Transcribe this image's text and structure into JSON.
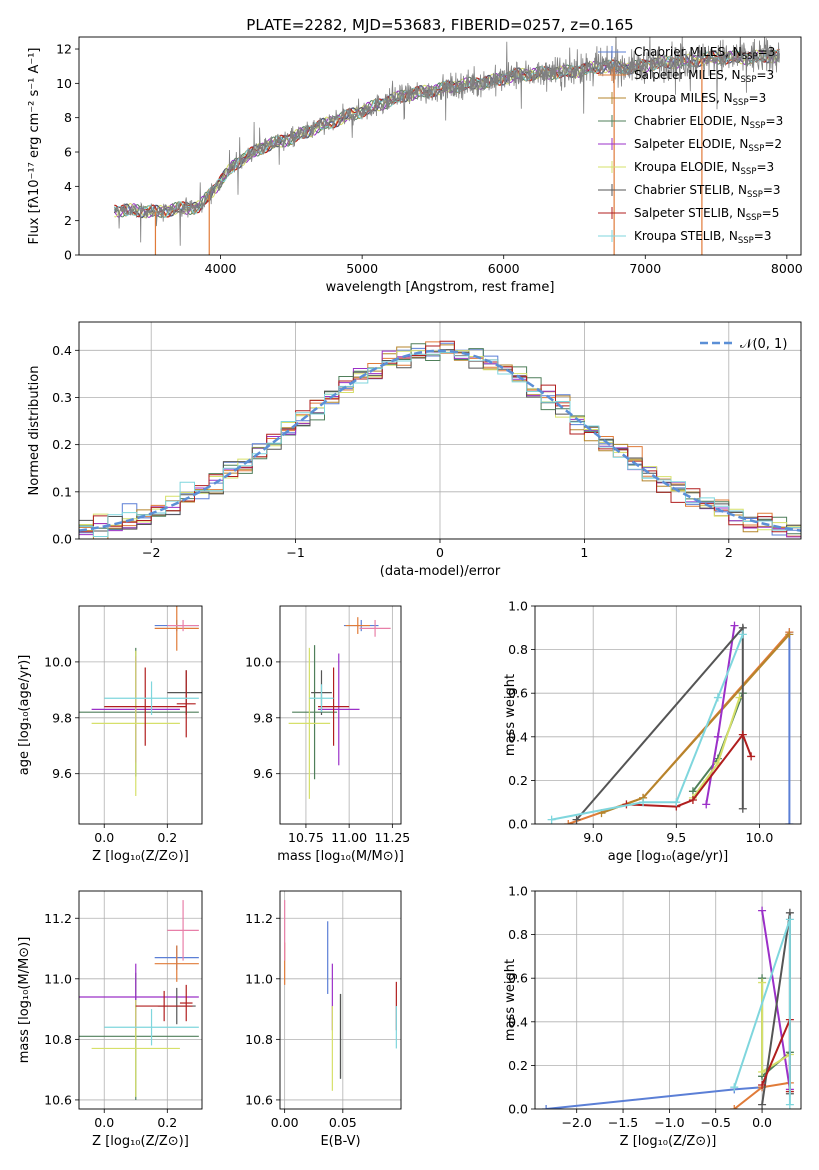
{
  "colors": {
    "chabrier_miles": "#5b7fd6",
    "salpeter_miles": "#e07b39",
    "kroupa_miles": "#b5852c",
    "chabrier_elodie": "#4f7f5a",
    "salpeter_elodie": "#9b30c8",
    "kroupa_elodie": "#d6e06a",
    "chabrier_stelib": "#555555",
    "salpeter_stelib": "#b01e1e",
    "kroupa_stelib": "#7fd6dd",
    "data": "#808080",
    "normal": "#5b8fd6",
    "pink": "#e87fa8"
  },
  "chart_data": [
    {
      "id": "spectrum",
      "type": "line",
      "title": "PLATE=2282, MJD=53683, FIBERID=0257, z=0.165",
      "xlabel": "wavelength [Angstrom, rest frame]",
      "ylabel": "Flux [fλ10⁻¹⁷ erg cm⁻² s⁻¹ A⁻¹]",
      "xlim": [
        3000,
        8100
      ],
      "ylim": [
        0,
        12.7
      ],
      "xticks": [
        "4000",
        "5000",
        "6000",
        "7000",
        "8000"
      ],
      "yticks": [
        "0",
        "2",
        "4",
        "6",
        "8",
        "10",
        "12"
      ],
      "legend_position": "top-right",
      "legend": [
        {
          "base": "Chabrier MILES, N",
          "sub": "SSP",
          "tail": "=3"
        },
        {
          "base": "Salpeter MILES, N",
          "sub": "SSP",
          "tail": "=3"
        },
        {
          "base": "Kroupa MILES, N",
          "sub": "SSP",
          "tail": "=3"
        },
        {
          "base": "Chabrier ELODIE, N",
          "sub": "SSP",
          "tail": "=3"
        },
        {
          "base": "Salpeter ELODIE, N",
          "sub": "SSP",
          "tail": "=2"
        },
        {
          "base": "Kroupa ELODIE, N",
          "sub": "SSP",
          "tail": "=3"
        },
        {
          "base": "Chabrier STELIB, N",
          "sub": "SSP",
          "tail": "=3"
        },
        {
          "base": "Salpeter STELIB, N",
          "sub": "SSP",
          "tail": "=5"
        },
        {
          "base": "Kroupa STELIB, N",
          "sub": "SSP",
          "tail": "=3"
        }
      ],
      "continuum": [
        [
          3250,
          2.6
        ],
        [
          3400,
          2.6
        ],
        [
          3550,
          2.5
        ],
        [
          3700,
          2.7
        ],
        [
          3850,
          2.8
        ],
        [
          3950,
          3.8
        ],
        [
          4100,
          5.3
        ],
        [
          4300,
          6.3
        ],
        [
          4500,
          6.8
        ],
        [
          4700,
          7.5
        ],
        [
          4900,
          8.1
        ],
        [
          5100,
          8.7
        ],
        [
          5300,
          9.3
        ],
        [
          5500,
          9.6
        ],
        [
          5700,
          9.9
        ],
        [
          5900,
          10.1
        ],
        [
          6100,
          10.5
        ],
        [
          6300,
          10.6
        ],
        [
          6500,
          10.7
        ],
        [
          6700,
          11.0
        ],
        [
          6900,
          10.9
        ],
        [
          7100,
          11.2
        ],
        [
          7300,
          11.3
        ],
        [
          7500,
          11.5
        ],
        [
          7700,
          11.5
        ],
        [
          7900,
          11.6
        ]
      ]
    },
    {
      "id": "residuals",
      "type": "line",
      "xlabel": "(data-model)/error",
      "ylabel": "Normed distribution",
      "xlim": [
        -2.5,
        2.5
      ],
      "ylim": [
        0,
        0.46
      ],
      "xticks": [
        "−2",
        "−1",
        "0",
        "1",
        "2"
      ],
      "yticks": [
        "0.0",
        "0.1",
        "0.2",
        "0.3",
        "0.4"
      ],
      "legend": "𝒩(0, 1)",
      "legend_position": "top-right",
      "bin_width": 0.1
    },
    {
      "id": "z_age",
      "type": "scatter",
      "xlabel": "Z [log₁₀(Z/Z⊙)]",
      "ylabel": "age  [log₁₀(age/yr)]",
      "xlim": [
        -0.08,
        0.31
      ],
      "ylim": [
        9.42,
        10.2
      ],
      "xticks": [
        "0.0",
        "0.2"
      ],
      "yticks": [
        "9.6",
        "9.8",
        "10.0"
      ],
      "crosses": [
        {
          "s": "chabrier_miles",
          "x": 0.23,
          "xe": 0.07,
          "y": 10.13,
          "ye": 0.02
        },
        {
          "s": "salpeter_miles",
          "x": 0.23,
          "xe": 0.07,
          "y": 10.12,
          "ye": 0.08
        },
        {
          "s": "pink",
          "x": 0.25,
          "xe": 0.05,
          "y": 10.13,
          "ye": 0.02
        },
        {
          "s": "chabrier_elodie",
          "x": 0.1,
          "xe": 0.2,
          "y": 9.82,
          "ye": 0.23
        },
        {
          "s": "salpeter_elodie",
          "x": 0.1,
          "xe": 0.14,
          "y": 9.83,
          "ye": 0.19
        },
        {
          "s": "kroupa_elodie",
          "x": 0.1,
          "xe": 0.14,
          "y": 9.78,
          "ye": 0.26
        },
        {
          "s": "chabrier_stelib",
          "x": 0.26,
          "xe": 0.06,
          "y": 9.89,
          "ye": 0.08
        },
        {
          "s": "salpeter_stelib",
          "x": 0.13,
          "xe": 0.13,
          "y": 9.84,
          "ye": 0.14
        },
        {
          "s": "salpeter_stelib",
          "x": 0.26,
          "xe": 0.03,
          "y": 9.85,
          "ye": 0.12
        },
        {
          "s": "kroupa_stelib",
          "x": 0.15,
          "xe": 0.15,
          "y": 9.87,
          "ye": 0.06
        }
      ]
    },
    {
      "id": "mass_age",
      "type": "scatter",
      "xlabel": "mass [log₁₀(M/M⊙)]",
      "ylabel": "",
      "xlim": [
        10.6,
        11.3
      ],
      "ylim": [
        9.42,
        10.2
      ],
      "xticks": [
        "10.75",
        "11.00",
        "11.25"
      ],
      "yticks": [
        "9.6",
        "9.8",
        "10.0"
      ],
      "crosses": [
        {
          "s": "chabrier_miles",
          "x": 11.07,
          "xe": 0.1,
          "y": 10.13,
          "ye": 0.02
        },
        {
          "s": "salpeter_miles",
          "x": 11.05,
          "xe": 0.07,
          "y": 10.13,
          "ye": 0.03
        },
        {
          "s": "pink",
          "x": 11.15,
          "xe": 0.09,
          "y": 10.12,
          "ye": 0.03
        },
        {
          "s": "chabrier_elodie",
          "x": 10.8,
          "xe": 0.13,
          "y": 9.82,
          "ye": 0.24
        },
        {
          "s": "salpeter_elodie",
          "x": 10.94,
          "xe": 0.12,
          "y": 9.83,
          "ye": 0.2
        },
        {
          "s": "kroupa_elodie",
          "x": 10.77,
          "xe": 0.12,
          "y": 9.78,
          "ye": 0.27
        },
        {
          "s": "chabrier_stelib",
          "x": 10.84,
          "xe": 0.06,
          "y": 9.89,
          "ye": 0.08
        },
        {
          "s": "salpeter_stelib",
          "x": 10.91,
          "xe": 0.09,
          "y": 9.84,
          "ye": 0.14
        },
        {
          "s": "kroupa_stelib",
          "x": 10.84,
          "xe": 0.07,
          "y": 9.87,
          "ye": 0.05
        }
      ]
    },
    {
      "id": "age_weight",
      "type": "line",
      "xlabel": "age  [log₁₀(age/yr)]",
      "ylabel": "mass weight",
      "xlim": [
        8.65,
        10.25
      ],
      "ylim": [
        0,
        1
      ],
      "xticks": [
        "9.0",
        "9.5",
        "10.0"
      ],
      "yticks": [
        "0.0",
        "0.2",
        "0.4",
        "0.6",
        "0.8",
        "1.0"
      ],
      "series": [
        {
          "s": "chabrier_miles",
          "points": [
            [
              10.18,
              0.0
            ],
            [
              10.18,
              0.88
            ]
          ]
        },
        {
          "s": "salpeter_miles",
          "points": [
            [
              8.85,
              0.0
            ],
            [
              9.3,
              0.12
            ],
            [
              10.18,
              0.88
            ]
          ]
        },
        {
          "s": "kroupa_miles",
          "points": [
            [
              9.05,
              0.05
            ],
            [
              9.3,
              0.12
            ],
            [
              10.18,
              0.87
            ]
          ]
        },
        {
          "s": "chabrier_elodie",
          "points": [
            [
              9.6,
              0.15
            ],
            [
              9.75,
              0.3
            ],
            [
              9.9,
              0.6
            ]
          ]
        },
        {
          "s": "salpeter_elodie",
          "points": [
            [
              9.68,
              0.09
            ],
            [
              9.75,
              0.4
            ],
            [
              9.85,
              0.91
            ]
          ]
        },
        {
          "s": "kroupa_elodie",
          "points": [
            [
              9.6,
              0.12
            ],
            [
              9.75,
              0.28
            ],
            [
              9.88,
              0.58
            ]
          ]
        },
        {
          "s": "chabrier_stelib",
          "points": [
            [
              8.9,
              0.02
            ],
            [
              9.9,
              0.9
            ],
            [
              9.9,
              0.07
            ]
          ]
        },
        {
          "s": "salpeter_stelib",
          "points": [
            [
              9.2,
              0.09
            ],
            [
              9.5,
              0.08
            ],
            [
              9.6,
              0.11
            ],
            [
              9.9,
              0.41
            ],
            [
              9.95,
              0.31
            ]
          ]
        },
        {
          "s": "kroupa_stelib",
          "points": [
            [
              8.75,
              0.02
            ],
            [
              9.3,
              0.1
            ],
            [
              9.5,
              0.1
            ],
            [
              9.75,
              0.58
            ],
            [
              9.9,
              0.87
            ]
          ]
        }
      ]
    },
    {
      "id": "z_mass",
      "type": "scatter",
      "xlabel": "Z [log₁₀(Z/Z⊙)]",
      "ylabel": "mass [log₁₀(M/M⊙)]",
      "xlim": [
        -0.08,
        0.31
      ],
      "ylim": [
        10.57,
        11.29
      ],
      "xticks": [
        "0.0",
        "0.2"
      ],
      "yticks": [
        "10.6",
        "10.8",
        "11.0",
        "11.2"
      ],
      "crosses": [
        {
          "s": "chabrier_miles",
          "x": 0.23,
          "xe": 0.07,
          "y": 11.07,
          "ye": 0.04
        },
        {
          "s": "salpeter_miles",
          "x": 0.23,
          "xe": 0.07,
          "y": 11.05,
          "ye": 0.06
        },
        {
          "s": "pink",
          "x": 0.25,
          "xe": 0.05,
          "y": 11.16,
          "ye": 0.1
        },
        {
          "s": "chabrier_elodie",
          "x": 0.1,
          "xe": 0.2,
          "y": 10.81,
          "ye": 0.21
        },
        {
          "s": "salpeter_elodie",
          "x": 0.1,
          "xe": 0.2,
          "y": 10.94,
          "ye": 0.11
        },
        {
          "s": "kroupa_elodie",
          "x": 0.1,
          "xe": 0.14,
          "y": 10.77,
          "ye": 0.16
        },
        {
          "s": "chabrier_stelib",
          "x": 0.23,
          "xe": 0.06,
          "y": 10.91,
          "ye": 0.06
        },
        {
          "s": "salpeter_stelib",
          "x": 0.19,
          "xe": 0.09,
          "y": 10.91,
          "ye": 0.05
        },
        {
          "s": "salpeter_stelib",
          "x": 0.26,
          "xe": 0.02,
          "y": 10.92,
          "ye": 0.06
        },
        {
          "s": "kroupa_stelib",
          "x": 0.15,
          "xe": 0.15,
          "y": 10.84,
          "ye": 0.06
        }
      ]
    },
    {
      "id": "ebv_mass",
      "type": "scatter",
      "xlabel": "E(B-V)",
      "ylabel": "",
      "xlim": [
        -0.004,
        0.1
      ],
      "ylim": [
        10.57,
        11.29
      ],
      "xticks": [
        "0.00",
        "0.05"
      ],
      "yticks": [
        "10.6",
        "10.8",
        "11.0",
        "11.2"
      ],
      "crosses": [
        {
          "s": "chabrier_miles",
          "x": 0.037,
          "y": 11.07,
          "ye": 0.12
        },
        {
          "s": "salpeter_miles",
          "x": 0.0,
          "y": 11.05,
          "ye": 0.07
        },
        {
          "s": "pink",
          "x": 0.0,
          "y": 11.16,
          "ye": 0.1
        },
        {
          "s": "chabrier_elodie",
          "x": 0.048,
          "y": 10.81,
          "ye": 0.14
        },
        {
          "s": "salpeter_elodie",
          "x": 0.041,
          "y": 10.94,
          "ye": 0.11
        },
        {
          "s": "kroupa_elodie",
          "x": 0.041,
          "y": 10.77,
          "ye": 0.14
        },
        {
          "s": "chabrier_stelib",
          "x": 0.048,
          "y": 10.81,
          "ye": 0.14
        },
        {
          "s": "salpeter_stelib",
          "x": 0.096,
          "y": 10.91,
          "ye": 0.08
        },
        {
          "s": "kroupa_stelib",
          "x": 0.096,
          "y": 10.84,
          "ye": 0.07
        }
      ]
    },
    {
      "id": "z_weight",
      "type": "line",
      "xlabel": "Z [log₁₀(Z/Z⊙)]",
      "ylabel": "mass weight",
      "xlim": [
        -2.45,
        0.42
      ],
      "ylim": [
        0,
        1
      ],
      "xticks": [
        "−2.0",
        "−1.5",
        "−1.0",
        "−0.5",
        "0.0"
      ],
      "yticks": [
        "0.0",
        "0.2",
        "0.4",
        "0.6",
        "0.8",
        "1.0"
      ],
      "series": [
        {
          "s": "chabrier_miles",
          "points": [
            [
              -2.33,
              0.0
            ],
            [
              -0.3,
              0.09
            ],
            [
              0.0,
              0.1
            ]
          ]
        },
        {
          "s": "salpeter_miles",
          "points": [
            [
              -0.3,
              0.0
            ],
            [
              0.0,
              0.1
            ],
            [
              0.3,
              0.12
            ]
          ]
        },
        {
          "s": "chabrier_elodie",
          "points": [
            [
              0.0,
              0.6
            ],
            [
              0.0,
              0.15
            ],
            [
              0.3,
              0.26
            ]
          ]
        },
        {
          "s": "salpeter_elodie",
          "points": [
            [
              0.0,
              0.91
            ],
            [
              0.3,
              0.09
            ]
          ]
        },
        {
          "s": "kroupa_elodie",
          "points": [
            [
              0.0,
              0.58
            ],
            [
              0.0,
              0.17
            ],
            [
              0.3,
              0.25
            ]
          ]
        },
        {
          "s": "chabrier_stelib",
          "points": [
            [
              0.0,
              0.02
            ],
            [
              0.3,
              0.9
            ],
            [
              0.3,
              0.07
            ]
          ]
        },
        {
          "s": "salpeter_stelib",
          "points": [
            [
              0.0,
              0.11
            ],
            [
              0.3,
              0.41
            ],
            [
              0.3,
              0.08
            ]
          ]
        },
        {
          "s": "kroupa_stelib",
          "points": [
            [
              -0.3,
              0.1
            ],
            [
              0.3,
              0.87
            ],
            [
              0.3,
              0.02
            ]
          ]
        }
      ]
    }
  ]
}
